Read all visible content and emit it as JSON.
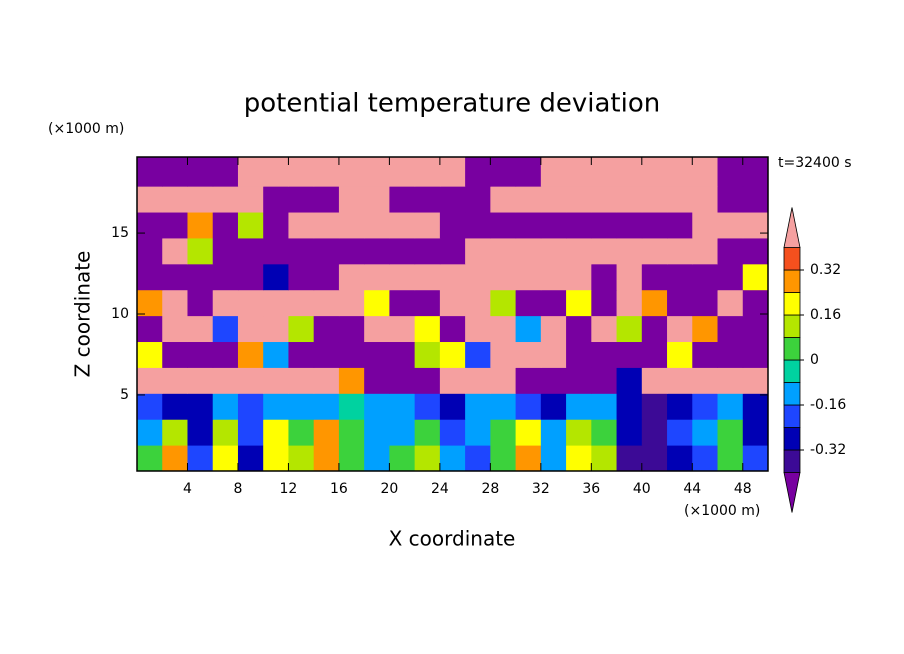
{
  "chart_data": {
    "type": "contour",
    "title": "potential temperature deviation",
    "x_label": "X coordinate",
    "y_label": "Z coordinate",
    "x_unit": "(×1000 m)",
    "y_unit": "(×1000 m)",
    "annotation": "t=32400 s",
    "xlim": [
      0,
      50
    ],
    "ylim": [
      0.3,
      19.7
    ],
    "xticks": [
      4,
      8,
      12,
      16,
      20,
      24,
      28,
      32,
      36,
      40,
      44,
      48
    ],
    "yticks": [
      5,
      10,
      15
    ],
    "x": [
      1,
      3,
      5,
      7,
      9,
      11,
      13,
      15,
      17,
      19,
      21,
      23,
      25,
      27,
      29,
      31,
      33,
      35,
      37,
      39,
      41,
      43,
      45,
      47,
      49
    ],
    "z": [
      1.1,
      2.7,
      4.3,
      5.9,
      7.5,
      9.1,
      10.7,
      12.3,
      13.9,
      15.5,
      17.1,
      18.7
    ],
    "values": [
      [
        0.04,
        0.3,
        -0.2,
        0.2,
        -0.3,
        0.2,
        0.1,
        0.3,
        0,
        -0.1,
        0.04,
        0.1,
        -0.1,
        -0.2,
        0,
        0.3,
        -0.1,
        0.2,
        0.1,
        -0.35,
        -0.35,
        -0.25,
        -0.2,
        0,
        -0.2
      ],
      [
        -0.1,
        0.1,
        -0.3,
        0.1,
        -0.2,
        0.2,
        0,
        0.3,
        0.05,
        -0.1,
        -0.1,
        0.05,
        -0.2,
        -0.1,
        0,
        0.2,
        -0.1,
        0.1,
        0,
        -0.25,
        -0.35,
        -0.2,
        -0.1,
        0,
        -0.3
      ],
      [
        -0.2,
        -0.25,
        -0.3,
        -0.15,
        -0.2,
        -0.1,
        -0.15,
        -0.1,
        -0.05,
        -0.15,
        -0.1,
        -0.2,
        -0.3,
        -0.15,
        -0.1,
        -0.2,
        -0.25,
        -0.1,
        -0.15,
        -0.3,
        -0.35,
        -0.25,
        -0.2,
        -0.15,
        -0.3
      ],
      [
        0.45,
        0.45,
        0.45,
        0.45,
        0.45,
        0.45,
        0.45,
        0.45,
        0.3,
        -0.45,
        -0.45,
        -0.45,
        0.45,
        0.45,
        0.45,
        -0.45,
        -0.45,
        -0.45,
        -0.45,
        -0.3,
        0.45,
        0.45,
        0.45,
        0.45,
        0.45
      ],
      [
        0.2,
        -0.45,
        -0.45,
        -0.45,
        0.3,
        -0.1,
        -0.45,
        -0.45,
        -0.45,
        -0.45,
        -0.45,
        0.1,
        0.2,
        -0.2,
        0.45,
        0.45,
        0.45,
        -0.45,
        -0.45,
        -0.45,
        -0.45,
        0.2,
        -0.45,
        -0.45,
        -0.45
      ],
      [
        -0.45,
        0.45,
        0.45,
        -0.2,
        0.45,
        0.45,
        0.1,
        -0.45,
        -0.45,
        0.45,
        0.45,
        0.2,
        -0.45,
        0.45,
        0.45,
        -0.1,
        0.45,
        -0.45,
        0.45,
        0.1,
        -0.45,
        0.45,
        0.3,
        -0.45,
        -0.45
      ],
      [
        0.3,
        0.45,
        -0.45,
        0.45,
        0.45,
        0.45,
        0.45,
        0.45,
        0.45,
        0.2,
        -0.45,
        -0.45,
        0.45,
        0.45,
        0.1,
        -0.45,
        -0.45,
        0.2,
        -0.45,
        0.45,
        0.3,
        -0.45,
        -0.45,
        0.45,
        -0.45
      ],
      [
        -0.45,
        -0.45,
        -0.45,
        -0.45,
        -0.45,
        -0.3,
        -0.45,
        -0.45,
        0.45,
        0.45,
        0.45,
        0.45,
        0.45,
        0.45,
        0.45,
        0.45,
        0.45,
        0.45,
        -0.45,
        0.45,
        -0.45,
        -0.45,
        -0.45,
        -0.45,
        0.2
      ],
      [
        -0.45,
        0.45,
        0.1,
        -0.45,
        -0.45,
        -0.45,
        -0.45,
        -0.45,
        -0.45,
        -0.45,
        -0.45,
        -0.45,
        -0.45,
        0.45,
        0.45,
        0.45,
        0.45,
        0.45,
        0.45,
        0.45,
        0.45,
        0.45,
        0.45,
        -0.45,
        -0.45
      ],
      [
        -0.45,
        -0.45,
        0.3,
        -0.45,
        0.1,
        -0.45,
        0.45,
        0.45,
        0.45,
        0.45,
        0.45,
        0.45,
        -0.45,
        -0.45,
        -0.45,
        -0.45,
        -0.45,
        -0.45,
        -0.45,
        -0.45,
        -0.45,
        -0.45,
        0.45,
        0.45,
        0.45
      ],
      [
        0.45,
        0.45,
        0.45,
        0.45,
        0.45,
        -0.45,
        -0.45,
        -0.45,
        0.45,
        0.45,
        -0.45,
        -0.45,
        -0.45,
        -0.45,
        0.45,
        0.45,
        0.45,
        0.45,
        0.45,
        0.45,
        0.45,
        0.45,
        0.45,
        -0.45,
        -0.45
      ],
      [
        -0.45,
        -0.45,
        -0.45,
        -0.45,
        0.45,
        0.45,
        0.45,
        0.45,
        0.45,
        0.45,
        0.45,
        0.45,
        0.45,
        -0.45,
        -0.45,
        -0.45,
        0.45,
        0.45,
        0.45,
        0.45,
        0.45,
        0.45,
        0.45,
        -0.45,
        -0.45
      ]
    ],
    "levels": [
      -0.4,
      -0.32,
      -0.24,
      -0.16,
      -0.08,
      0,
      0.08,
      0.16,
      0.24,
      0.32,
      0.4
    ],
    "colors": [
      "#7800a0",
      "#3c0a96",
      "#0000b4",
      "#1e46ff",
      "#00a0ff",
      "#00d2a0",
      "#3cd23c",
      "#b4e600",
      "#ffff00",
      "#ff9600",
      "#f5501e",
      "#f5a0a0"
    ],
    "colorbar_ticks": [
      -0.32,
      -0.16,
      0,
      0.16,
      0.32
    ]
  }
}
